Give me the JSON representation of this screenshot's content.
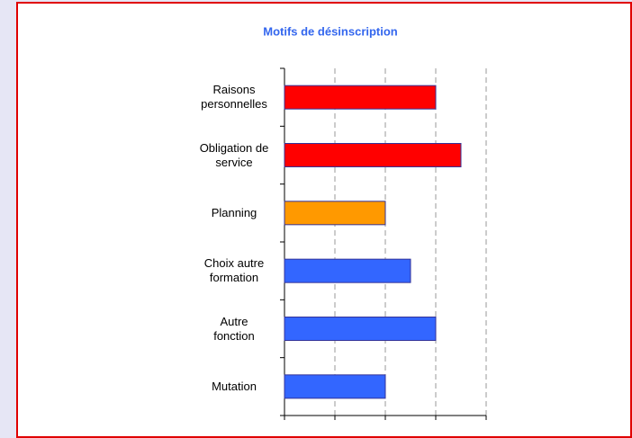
{
  "chart_data": {
    "type": "hbar",
    "title": "Motifs de désinscription",
    "categories": [
      "Raisons personnelles",
      "Obligation de service",
      "Planning",
      "Choix autre formation",
      "Autre fonction",
      "Mutation"
    ],
    "values": [
      3,
      3.5,
      2,
      2.5,
      3,
      2
    ],
    "colors": [
      "#ff0000",
      "#ff0000",
      "#ff9900",
      "#3366ff",
      "#3366ff",
      "#3366ff"
    ],
    "xlim": [
      0,
      4
    ],
    "xticks": [
      0,
      1,
      2,
      3,
      4
    ],
    "grid": true
  }
}
